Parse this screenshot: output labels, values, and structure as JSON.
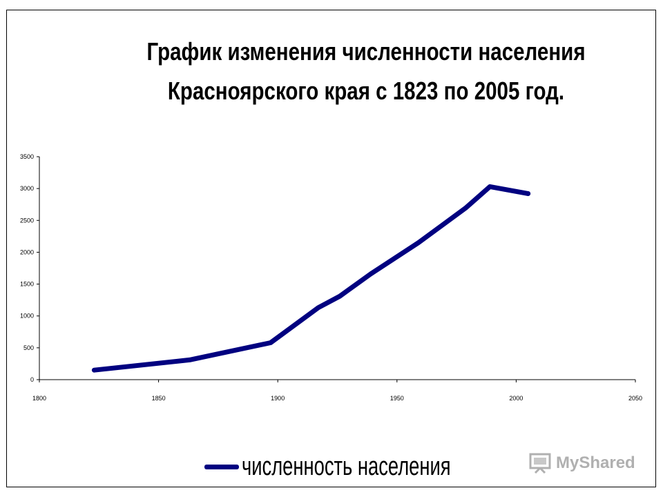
{
  "chart_data": {
    "type": "line",
    "title_lines": [
      "График изменения численности населения",
      "Красноярского края с 1823 по 2005 год."
    ],
    "xlabel": "",
    "ylabel": "",
    "x_ticks": [
      1800,
      1850,
      1900,
      1950,
      2000,
      2050
    ],
    "y_ticks": [
      0,
      500,
      1000,
      1500,
      2000,
      2500,
      3000,
      3500
    ],
    "xlim": [
      1800,
      2050
    ],
    "ylim": [
      0,
      3500
    ],
    "grid": false,
    "legend_position": "bottom",
    "series": [
      {
        "name": "численность населения",
        "color": "#000080",
        "points": [
          {
            "x": 1823,
            "y": 150
          },
          {
            "x": 1863,
            "y": 310
          },
          {
            "x": 1897,
            "y": 580
          },
          {
            "x": 1917,
            "y": 1130
          },
          {
            "x": 1926,
            "y": 1310
          },
          {
            "x": 1939,
            "y": 1660
          },
          {
            "x": 1959,
            "y": 2150
          },
          {
            "x": 1979,
            "y": 2700
          },
          {
            "x": 1989,
            "y": 3030
          },
          {
            "x": 2005,
            "y": 2920
          }
        ]
      }
    ]
  },
  "watermark": {
    "text": "MyShared",
    "icon": "projector-screen-icon"
  }
}
